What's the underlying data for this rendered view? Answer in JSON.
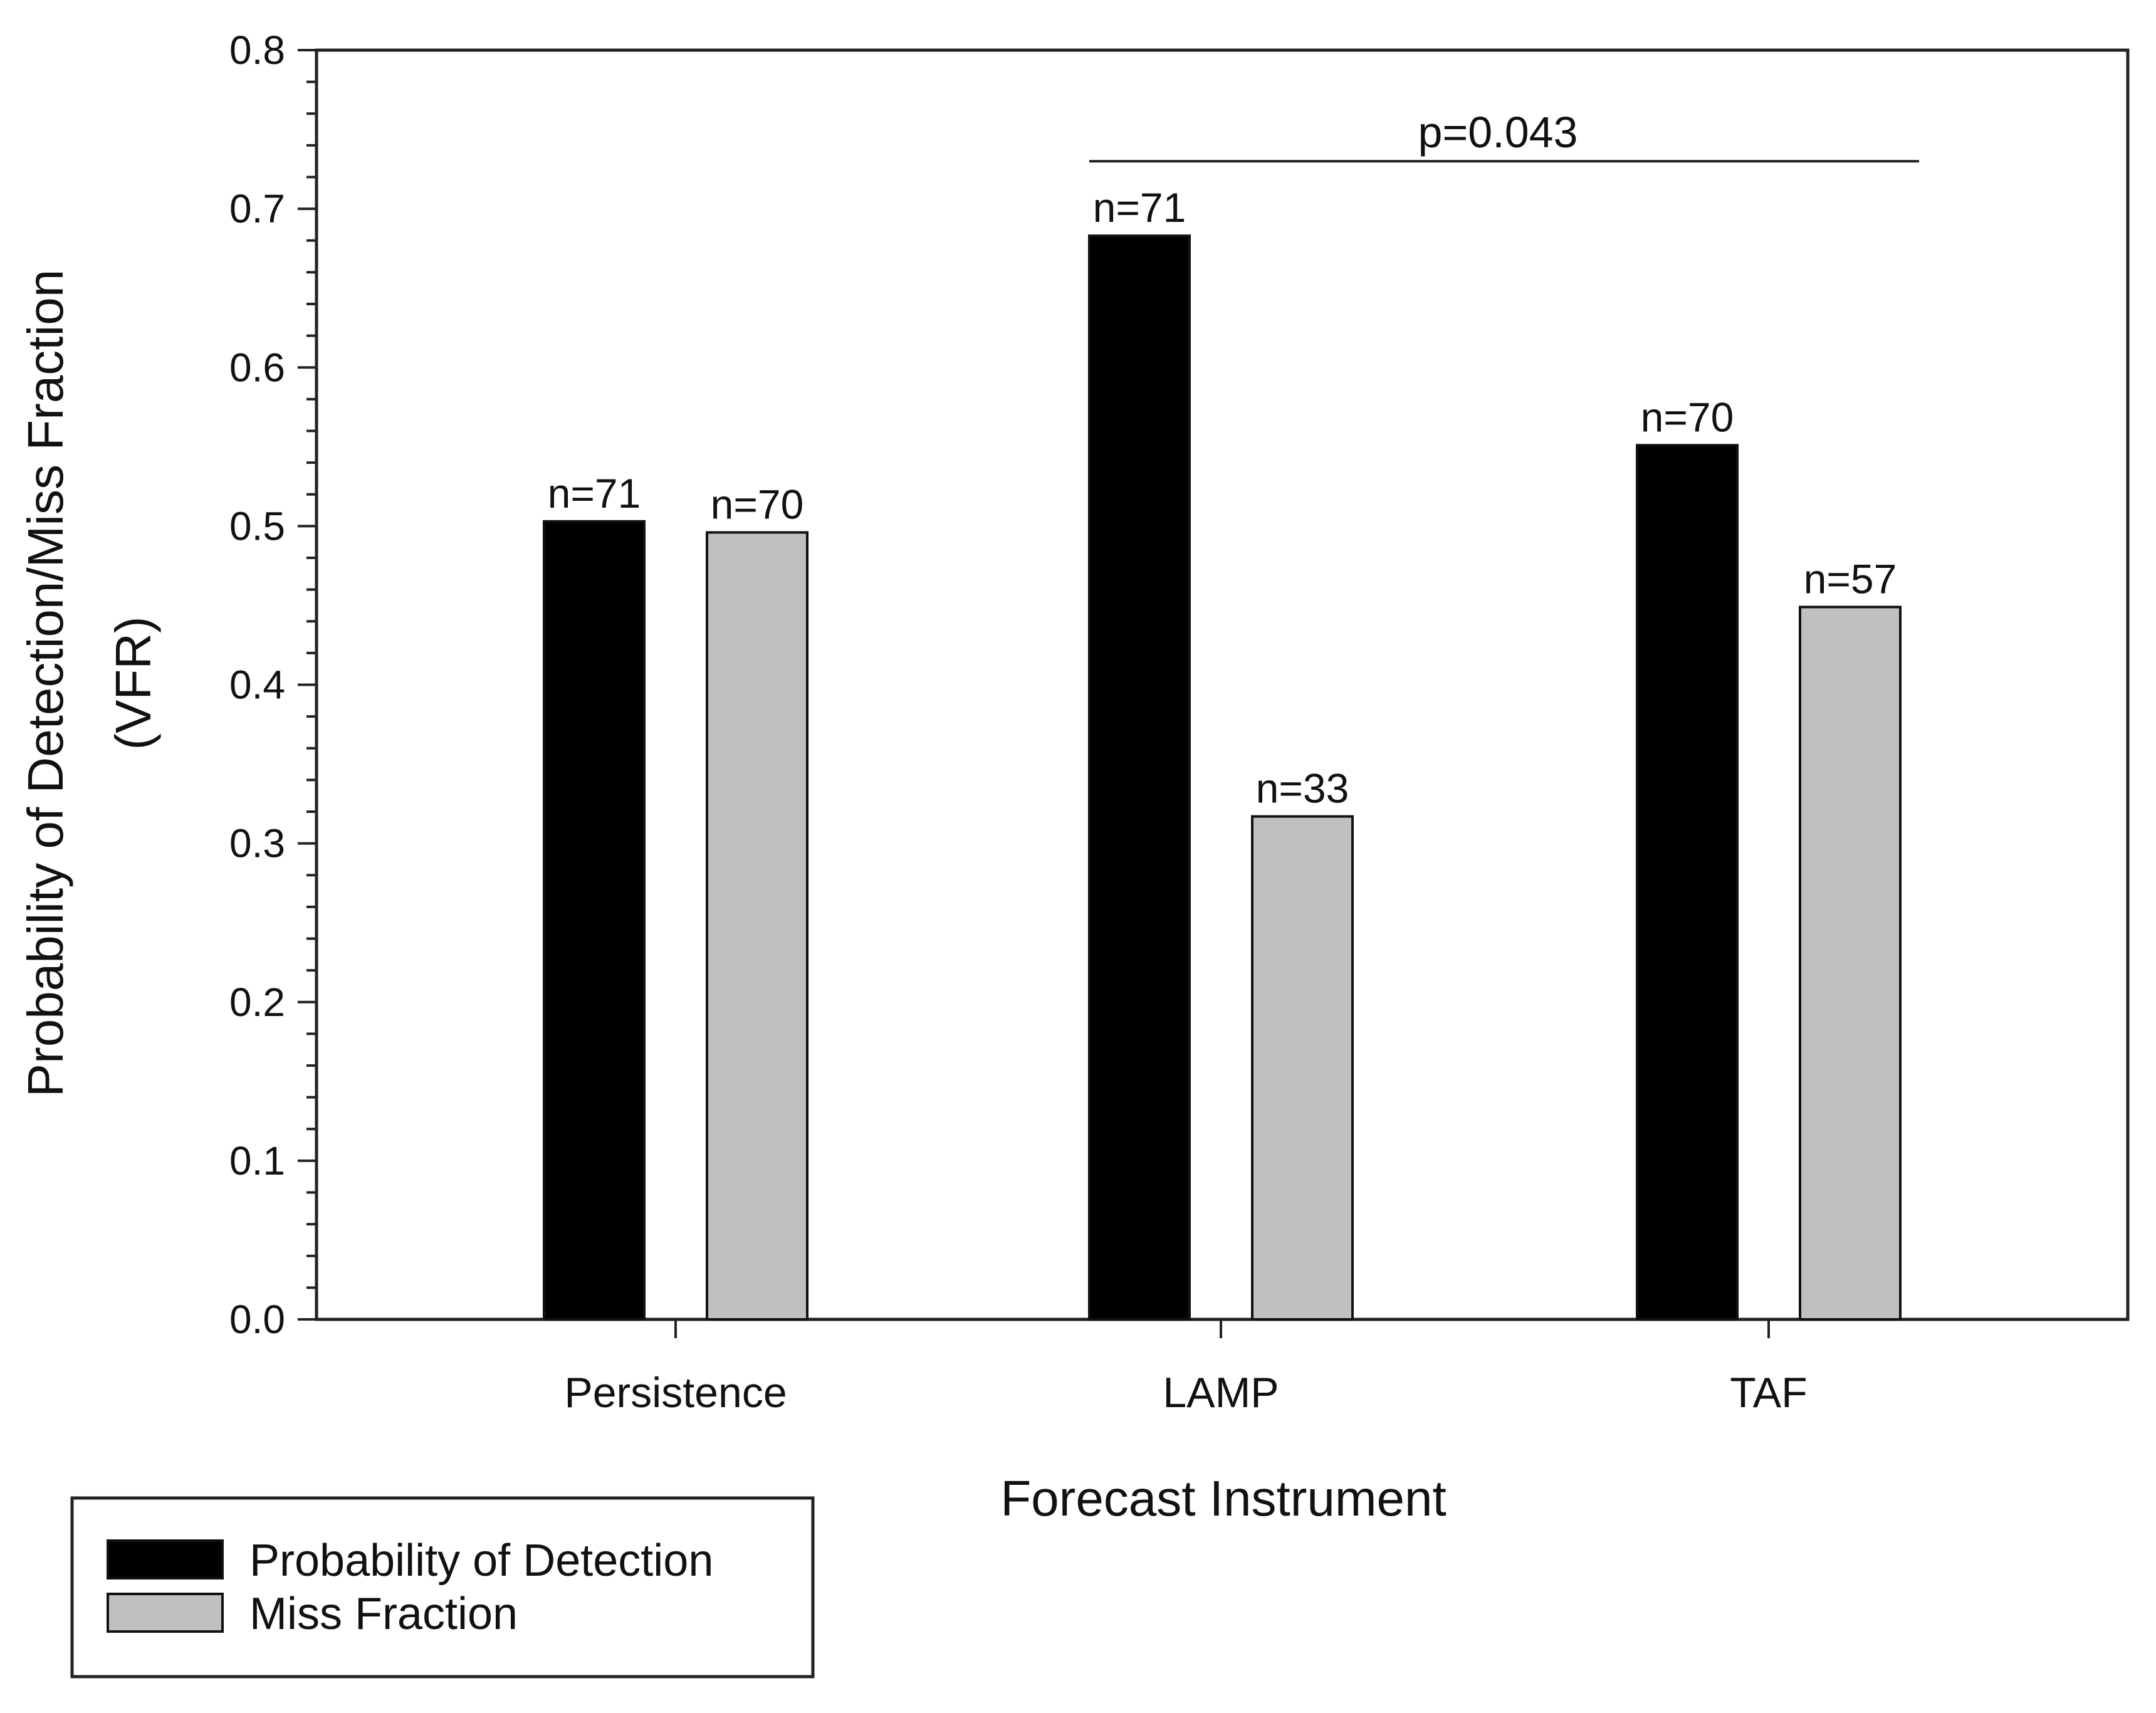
{
  "chart_data": {
    "type": "bar",
    "title": "",
    "xlabel": "Forecast Instrument",
    "ylabel_lines": [
      "Probability of Detection/Miss Fraction",
      "(VFR)"
    ],
    "ylim": [
      0.0,
      0.8
    ],
    "y_ticks": [
      "0.0",
      "0.1",
      "0.2",
      "0.3",
      "0.4",
      "0.5",
      "0.6",
      "0.7",
      "0.8"
    ],
    "categories": [
      "Persistence",
      "LAMP",
      "TAF"
    ],
    "series": [
      {
        "name": "Probability of Detection",
        "color": "#000000",
        "values": [
          0.503,
          0.683,
          0.551
        ],
        "labels": [
          "n=71",
          "n=71",
          "n=70"
        ]
      },
      {
        "name": "Miss Fraction",
        "color": "#c0c0c0",
        "values": [
          0.496,
          0.317,
          0.449
        ],
        "labels": [
          "n=70",
          "n=33",
          "n=57"
        ]
      }
    ],
    "annotations": [
      {
        "text": "p=0.043",
        "from_category": "LAMP",
        "to_category": "TAF",
        "y": 0.73
      }
    ],
    "legend_position": "bottom-left",
    "grid": false
  }
}
